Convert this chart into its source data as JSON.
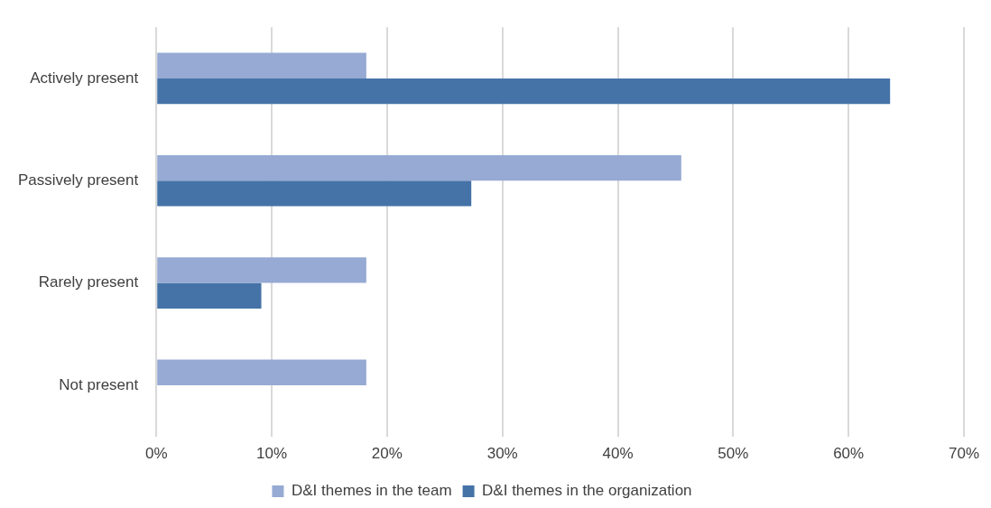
{
  "chart_data": {
    "type": "bar",
    "orientation": "horizontal",
    "categories": [
      "Actively present",
      "Passively present",
      "Rarely present",
      "Not present"
    ],
    "series": [
      {
        "name": "D&I themes in the team",
        "color": "#96aad3",
        "values": [
          18.2,
          45.5,
          18.2,
          18.2
        ]
      },
      {
        "name": "D&I themes in the organization",
        "color": "#4573a7",
        "values": [
          63.6,
          27.3,
          9.1,
          0
        ]
      }
    ],
    "xlim": [
      0,
      70
    ],
    "xticks": [
      {
        "value": 0,
        "label": "0%"
      },
      {
        "value": 10,
        "label": "10%"
      },
      {
        "value": 20,
        "label": "20%"
      },
      {
        "value": 30,
        "label": "30%"
      },
      {
        "value": 40,
        "label": "40%"
      },
      {
        "value": 50,
        "label": "50%"
      },
      {
        "value": 60,
        "label": "60%"
      },
      {
        "value": 70,
        "label": "70%"
      }
    ],
    "grid": "x",
    "legend": "bottom"
  }
}
